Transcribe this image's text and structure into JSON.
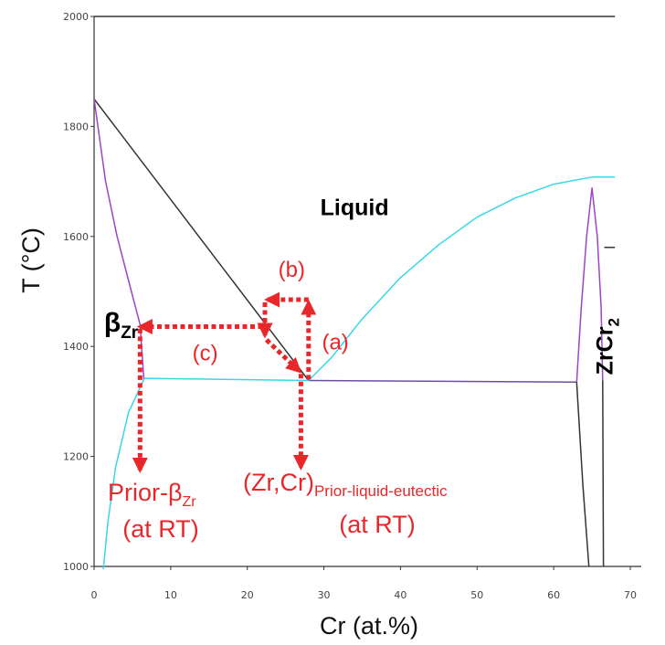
{
  "chart_data": {
    "type": "line",
    "title": "",
    "xlabel": "Cr (at.%)",
    "ylabel": "T (°C)",
    "xlim": [
      0,
      70
    ],
    "ylim": [
      1000,
      2000
    ],
    "x_ticks": [
      "0",
      "10",
      "20",
      "30",
      "40",
      "50",
      "60",
      "70"
    ],
    "y_ticks": [
      "1000",
      "1200",
      "1400",
      "1600",
      "1800",
      "2000"
    ],
    "grid": false,
    "colors": {
      "liquidus": "#333333",
      "beta_boundary": "#9b45c9",
      "solvus": "#38d8e8",
      "eutectic": "#6a4f9e",
      "compound": "#222222",
      "arrows": "#e8272b"
    },
    "series": [
      {
        "key": "liquidus_beta",
        "color": "#333333",
        "points": [
          [
            0,
            1850
          ],
          [
            28,
            1338
          ]
        ]
      },
      {
        "key": "beta_solidus",
        "color": "#9b45c9",
        "points": [
          [
            0,
            1850
          ],
          [
            1.5,
            1700
          ],
          [
            3,
            1600
          ],
          [
            4.5,
            1520
          ],
          [
            6,
            1440
          ],
          [
            6.5,
            1340
          ]
        ]
      },
      {
        "key": "beta_solvus",
        "color": "#38d8e8",
        "points": [
          [
            6.5,
            1340
          ],
          [
            4.5,
            1280
          ],
          [
            2.8,
            1180
          ],
          [
            1.8,
            1080
          ],
          [
            1.2,
            995
          ]
        ]
      },
      {
        "key": "eutectic_left",
        "color": "#38d8e8",
        "points": [
          [
            6.5,
            1342
          ],
          [
            28,
            1338
          ]
        ]
      },
      {
        "key": "eutectic_right",
        "color": "#6a4f9e",
        "points": [
          [
            28,
            1338
          ],
          [
            63,
            1335
          ]
        ]
      },
      {
        "key": "liquidus_laves",
        "color": "#38d8e8",
        "points": [
          [
            28,
            1338
          ],
          [
            31,
            1380
          ],
          [
            35,
            1450
          ],
          [
            40,
            1525
          ],
          [
            45,
            1585
          ],
          [
            50,
            1635
          ],
          [
            55,
            1670
          ],
          [
            60,
            1695
          ],
          [
            65,
            1708
          ],
          [
            68,
            1708
          ]
        ]
      },
      {
        "key": "laves_left",
        "color": "#9b45c9",
        "points": [
          [
            63,
            1335
          ],
          [
            63.6,
            1470
          ],
          [
            64.3,
            1600
          ],
          [
            65,
            1688
          ],
          [
            65.7,
            1600
          ],
          [
            66.2,
            1470
          ],
          [
            66.4,
            1338
          ]
        ]
      },
      {
        "key": "laves_low",
        "color": "#333333",
        "points": [
          [
            63,
            1335
          ],
          [
            63.8,
            1150
          ],
          [
            64.6,
            1000
          ]
        ]
      },
      {
        "key": "laves_right",
        "color": "#333333",
        "points": [
          [
            66.4,
            1338
          ],
          [
            66.5,
            1000
          ]
        ]
      },
      {
        "key": "laves_edge",
        "color": "#333333",
        "points": [
          [
            66.6,
            1580
          ],
          [
            68,
            1580
          ]
        ]
      },
      {
        "key": "top_frame",
        "color": "#333333",
        "points": [
          [
            0,
            2000
          ],
          [
            68,
            2000
          ]
        ]
      }
    ],
    "regions": [
      {
        "label": "Liquid",
        "x": 34,
        "y": 1655
      },
      {
        "label": "β",
        "sub": "Zr",
        "x": 1.3,
        "y": 1450
      }
    ],
    "compound_label": {
      "main": "ZrCr",
      "sub": "2",
      "x": 67.3,
      "y": 1400
    },
    "annotations": [
      {
        "text": "(a)",
        "x": 31.5,
        "y": 1408
      },
      {
        "text": "(b)",
        "x": 25.8,
        "y": 1540
      },
      {
        "text": "(c)",
        "x": 14.5,
        "y": 1388
      }
    ],
    "bottom_labels": {
      "prior_beta": {
        "text": "Prior-β",
        "sub": "Zr",
        "at_rt": "(at RT)"
      },
      "eutectic": {
        "text": "(Zr,Cr)",
        "sub": "Prior-liquid-eutectic",
        "at_rt": "(at RT)"
      }
    },
    "arrows": [
      {
        "from": [
          28,
          1340
        ],
        "to": [
          28,
          1480
        ]
      },
      {
        "from": [
          28,
          1485
        ],
        "to": [
          22.6,
          1485
        ]
      },
      {
        "from": [
          22.3,
          1480
        ],
        "to": [
          22.3,
          1420
        ]
      },
      {
        "from": [
          22.5,
          1412
        ],
        "to": [
          26.8,
          1355
        ]
      },
      {
        "from": [
          22,
          1436
        ],
        "to": [
          6,
          1436
        ]
      },
      {
        "from": [
          6,
          1432
        ],
        "to": [
          6,
          1175
        ]
      },
      {
        "from": [
          27,
          1350
        ],
        "to": [
          27,
          1180
        ]
      }
    ]
  }
}
